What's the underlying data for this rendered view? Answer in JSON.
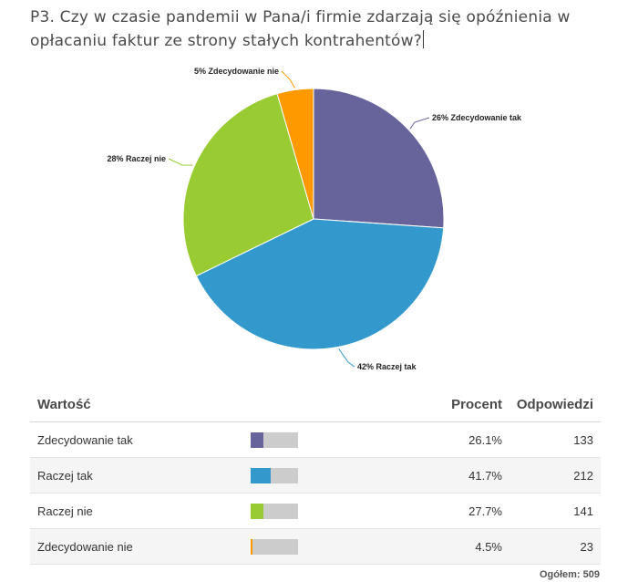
{
  "question": {
    "text": "P3. Czy w czasie pandemii w Pana/i firmie zdarzają się opóźnienia w opłacaniu faktur ze strony stałych kontrahentów?"
  },
  "chart_data": {
    "type": "pie",
    "slices": [
      {
        "label": "26% Zdecydowanie tak",
        "category": "Zdecydowanie tak",
        "value": 26.1,
        "color": "#66649a"
      },
      {
        "label": "42% Raczej tak",
        "category": "Raczej tak",
        "value": 41.7,
        "color": "#3399cc"
      },
      {
        "label": "28% Raczej nie",
        "category": "Raczej nie",
        "value": 27.7,
        "color": "#99cc33"
      },
      {
        "label": "5% Zdecydowanie nie",
        "category": "Zdecydowanie nie",
        "value": 4.5,
        "color": "#ff9900"
      }
    ],
    "start_angle": "12 o'clock, clockwise"
  },
  "table": {
    "headers": {
      "value": "Wartość",
      "percent": "Procent",
      "responses": "Odpowiedzi"
    },
    "rows": [
      {
        "name": "Zdecydowanie tak",
        "percent": "26.1%",
        "fraction": 0.261,
        "count": "133",
        "color": "#66649a"
      },
      {
        "name": "Raczej tak",
        "percent": "41.7%",
        "fraction": 0.417,
        "count": "212",
        "color": "#3399cc"
      },
      {
        "name": "Raczej nie",
        "percent": "27.7%",
        "fraction": 0.277,
        "count": "141",
        "color": "#99cc33"
      },
      {
        "name": "Zdecydowanie nie",
        "percent": "4.5%",
        "fraction": 0.045,
        "count": "23",
        "color": "#ff9900"
      }
    ],
    "total": "Ogółem: 509"
  }
}
